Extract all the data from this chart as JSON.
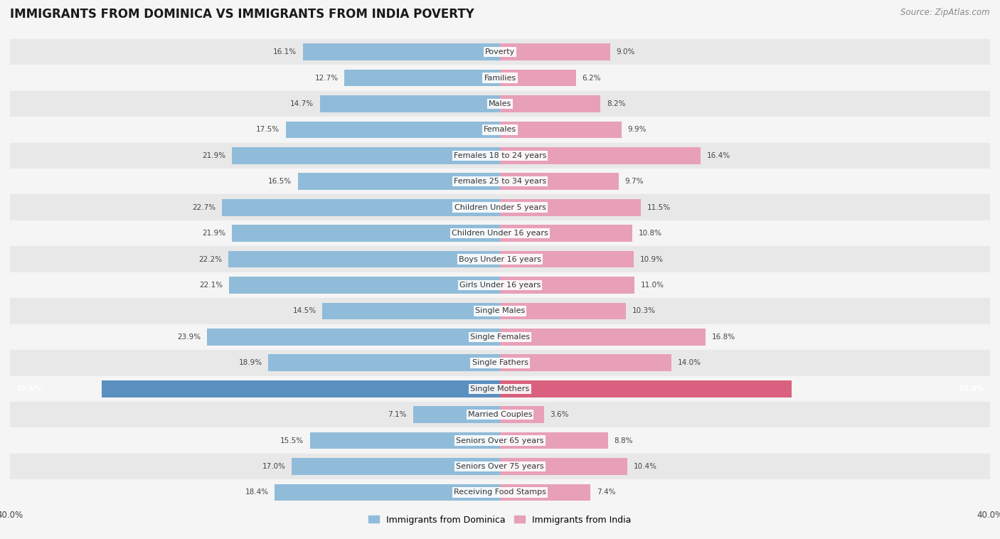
{
  "title": "IMMIGRANTS FROM DOMINICA VS IMMIGRANTS FROM INDIA POVERTY",
  "source": "Source: ZipAtlas.com",
  "categories": [
    "Poverty",
    "Families",
    "Males",
    "Females",
    "Females 18 to 24 years",
    "Females 25 to 34 years",
    "Children Under 5 years",
    "Children Under 16 years",
    "Boys Under 16 years",
    "Girls Under 16 years",
    "Single Males",
    "Single Females",
    "Single Fathers",
    "Single Mothers",
    "Married Couples",
    "Seniors Over 65 years",
    "Seniors Over 75 years",
    "Receiving Food Stamps"
  ],
  "dominica_values": [
    16.1,
    12.7,
    14.7,
    17.5,
    21.9,
    16.5,
    22.7,
    21.9,
    22.2,
    22.1,
    14.5,
    23.9,
    18.9,
    32.5,
    7.1,
    15.5,
    17.0,
    18.4
  ],
  "india_values": [
    9.0,
    6.2,
    8.2,
    9.9,
    16.4,
    9.7,
    11.5,
    10.8,
    10.9,
    11.0,
    10.3,
    16.8,
    14.0,
    23.8,
    3.6,
    8.8,
    10.4,
    7.4
  ],
  "dominica_color": "#90bcd9",
  "india_color": "#e8a0b8",
  "dominica_highlight_color": "#5b8fbf",
  "india_highlight_color": "#d9607e",
  "highlight_index": 13,
  "background_color": "#f5f5f5",
  "row_color_even": "#e8e8e8",
  "row_color_odd": "#f5f5f5",
  "xlim": 40.0,
  "legend_label_dominica": "Immigrants from Dominica",
  "legend_label_india": "Immigrants from India",
  "title_fontsize": 12,
  "source_fontsize": 8.5,
  "label_fontsize": 8,
  "value_fontsize": 7.5,
  "bar_height": 0.65
}
